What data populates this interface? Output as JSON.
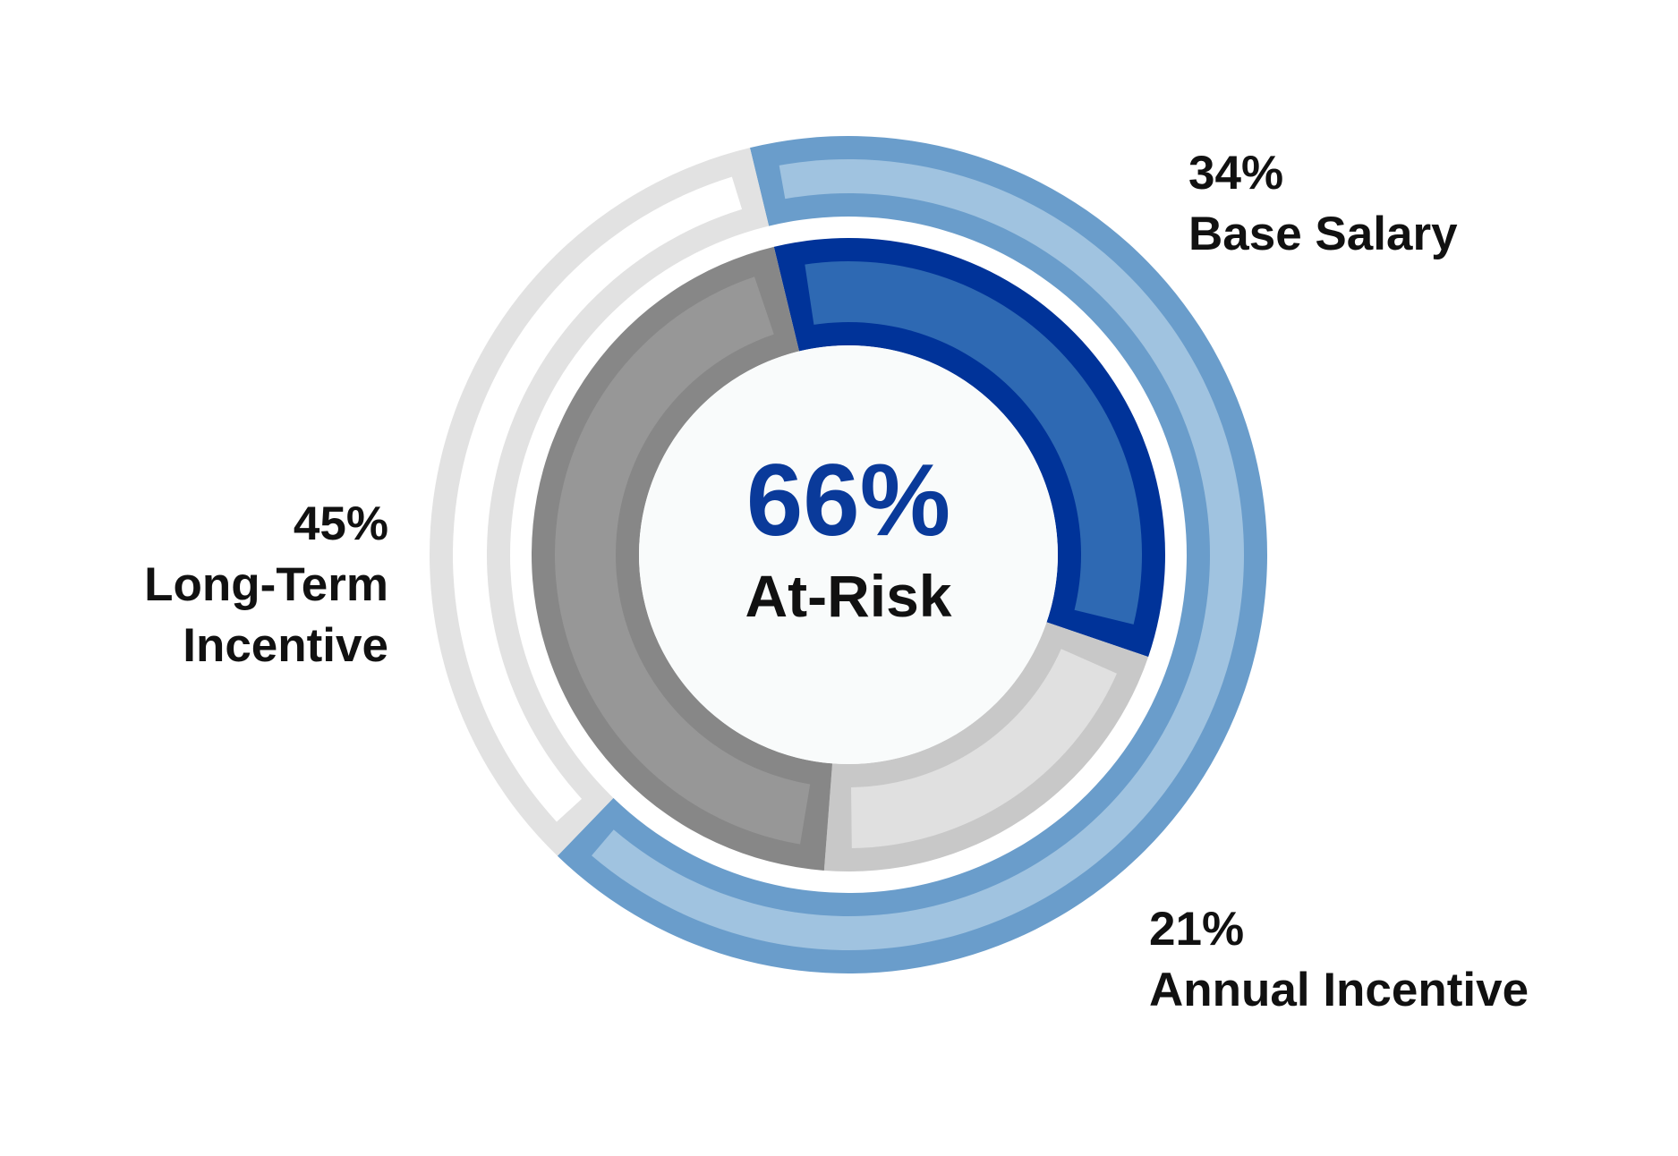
{
  "chart_data": {
    "type": "nested-donut",
    "series": [
      {
        "categories": [
          "Base Salary",
          "Annual Incentive",
          "Long-Term Incentive"
        ],
        "values": [
          34,
          21,
          45
        ],
        "value_labels": [
          "34%",
          "21%",
          "45%"
        ],
        "colors": [
          "#003399",
          "#c8c8c8",
          "#878787"
        ],
        "fill_colors": [
          "#2e69b3",
          "#e0e0e0",
          "#979797"
        ]
      },
      {
        "categories": [
          "At-Risk",
          null
        ],
        "values": [
          66,
          34
        ],
        "value_labels": [
          "66%",
          null
        ],
        "colors": [
          "#6a9dcb",
          "#e2e2e2"
        ],
        "fill_colors": [
          "#a0c3e0",
          "#ffffff"
        ]
      }
    ]
  }
}
